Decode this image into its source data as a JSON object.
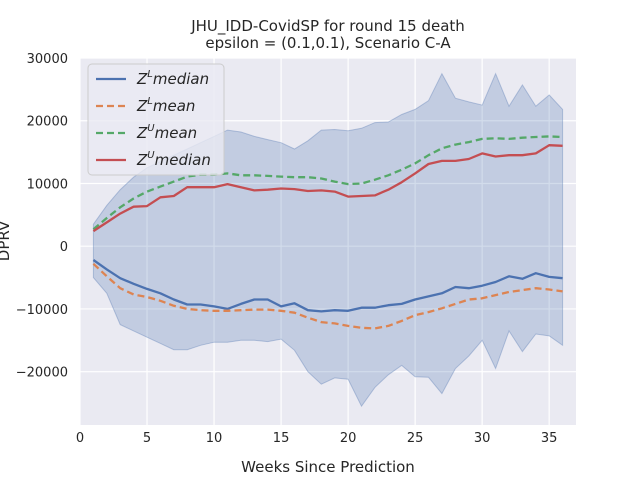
{
  "chart_data": {
    "type": "line",
    "title": "JHU_IDD-CovidSP for round 15 death",
    "subtitle": "epsilon = (0.1,0.1), Scenario C-A",
    "xlabel": "Weeks Since Prediction",
    "ylabel": "DPRV",
    "xlim": [
      0,
      37
    ],
    "ylim": [
      -28500,
      30000
    ],
    "xticks": [
      "0",
      "5",
      "10",
      "15",
      "20",
      "25",
      "30",
      "35"
    ],
    "yticks": [
      "−20000",
      "−10000",
      "0",
      "10000",
      "20000",
      "30000"
    ],
    "grid": true,
    "legend_position": "top-left",
    "x": [
      1,
      2,
      3,
      4,
      5,
      6,
      7,
      8,
      9,
      10,
      11,
      12,
      13,
      14,
      15,
      16,
      17,
      18,
      19,
      20,
      21,
      22,
      23,
      24,
      25,
      26,
      27,
      28,
      29,
      30,
      31,
      32,
      33,
      34,
      35,
      36
    ],
    "band": {
      "color": "#4c72b0",
      "upper": [
        3500,
        6500,
        9000,
        11000,
        12500,
        13500,
        14500,
        15500,
        16500,
        17500,
        18500,
        18200,
        17500,
        17000,
        16500,
        15500,
        16800,
        18500,
        18600,
        18400,
        18800,
        19700,
        19800,
        21000,
        21800,
        23200,
        27500,
        23600,
        23000,
        22500,
        27500,
        22300,
        25700,
        22300,
        24100,
        21800
      ],
      "lower": [
        -5000,
        -7500,
        -12500,
        -13500,
        -14500,
        -15500,
        -16500,
        -16500,
        -15800,
        -15300,
        -15300,
        -15000,
        -15000,
        -15200,
        -14800,
        -16600,
        -20000,
        -22000,
        -21000,
        -21200,
        -25500,
        -22500,
        -20500,
        -19000,
        -20800,
        -20900,
        -23500,
        -19500,
        -17500,
        -15000,
        -19500,
        -13500,
        -16800,
        -14000,
        -14300,
        -15800
      ]
    },
    "series": [
      {
        "name": "Z^L median",
        "color": "#4c72b0",
        "dash": "solid",
        "values": [
          -2200,
          -3700,
          -5100,
          -6000,
          -6800,
          -7500,
          -8500,
          -9300,
          -9300,
          -9600,
          -10000,
          -9200,
          -8500,
          -8500,
          -9600,
          -9100,
          -10200,
          -10400,
          -10200,
          -10300,
          -9800,
          -9800,
          -9400,
          -9200,
          -8500,
          -8000,
          -7500,
          -6500,
          -6700,
          -6300,
          -5700,
          -4800,
          -5200,
          -4300,
          -4900,
          -5100
        ]
      },
      {
        "name": "Z^L mean",
        "color": "#dd8452",
        "dash": "dashed",
        "values": [
          -2800,
          -4800,
          -6700,
          -7700,
          -8100,
          -8700,
          -9500,
          -10000,
          -10200,
          -10300,
          -10300,
          -10200,
          -10100,
          -10100,
          -10300,
          -10600,
          -11400,
          -12100,
          -12300,
          -12700,
          -13000,
          -13100,
          -12700,
          -11900,
          -11000,
          -10500,
          -9900,
          -9200,
          -8500,
          -8300,
          -7800,
          -7300,
          -7000,
          -6700,
          -6900,
          -7200
        ]
      },
      {
        "name": "Z^U mean",
        "color": "#55a868",
        "dash": "dashed",
        "values": [
          2700,
          4500,
          6200,
          7600,
          8700,
          9500,
          10300,
          11100,
          11400,
          11400,
          11600,
          11300,
          11300,
          11200,
          11100,
          11000,
          11000,
          10800,
          10300,
          9900,
          10000,
          10600,
          11300,
          12200,
          13200,
          14500,
          15600,
          16200,
          16600,
          17100,
          17200,
          17100,
          17300,
          17400,
          17500,
          17400
        ]
      },
      {
        "name": "Z^U median",
        "color": "#c44e52",
        "dash": "solid",
        "values": [
          2400,
          3800,
          5200,
          6300,
          6400,
          7800,
          8000,
          9400,
          9400,
          9400,
          9900,
          9400,
          8900,
          9000,
          9200,
          9100,
          8800,
          8900,
          8700,
          7900,
          8000,
          8100,
          9000,
          10200,
          11600,
          13100,
          13600,
          13600,
          13900,
          14800,
          14300,
          14500,
          14500,
          14800,
          16100,
          16000
        ]
      }
    ]
  }
}
